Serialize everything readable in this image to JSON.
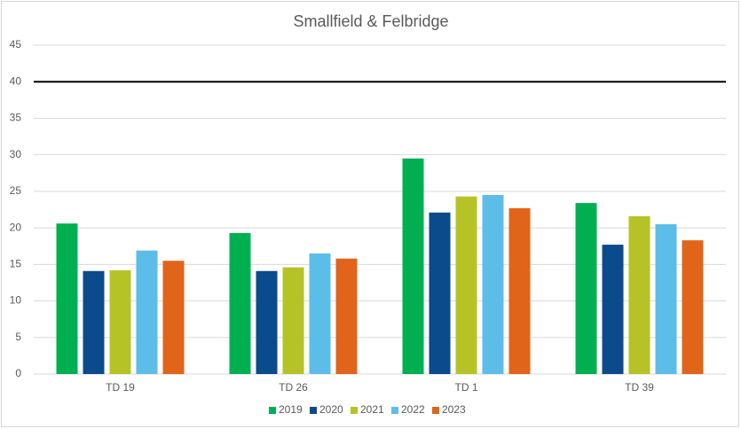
{
  "chart_data": {
    "type": "bar",
    "title": "Smallfield & Felbridge",
    "categories": [
      "TD 19",
      "TD 26",
      "TD 1",
      "TD 39"
    ],
    "series": [
      {
        "name": "2019",
        "color": "#00b050",
        "values": [
          20.6,
          19.3,
          29.5,
          23.4
        ]
      },
      {
        "name": "2020",
        "color": "#0b4a8b",
        "values": [
          14.1,
          14.1,
          22.1,
          17.7
        ]
      },
      {
        "name": "2021",
        "color": "#b5c327",
        "values": [
          14.2,
          14.6,
          24.3,
          21.6
        ]
      },
      {
        "name": "2022",
        "color": "#5bbde8",
        "values": [
          16.9,
          16.5,
          24.5,
          20.5
        ]
      },
      {
        "name": "2023",
        "color": "#e0641a",
        "values": [
          15.5,
          15.8,
          22.7,
          18.3
        ]
      }
    ],
    "ylim": [
      0,
      45
    ],
    "yticks": [
      0,
      5,
      10,
      15,
      20,
      25,
      30,
      35,
      40,
      45
    ],
    "grid": true,
    "reference_line": 40,
    "legend": "bottom"
  }
}
